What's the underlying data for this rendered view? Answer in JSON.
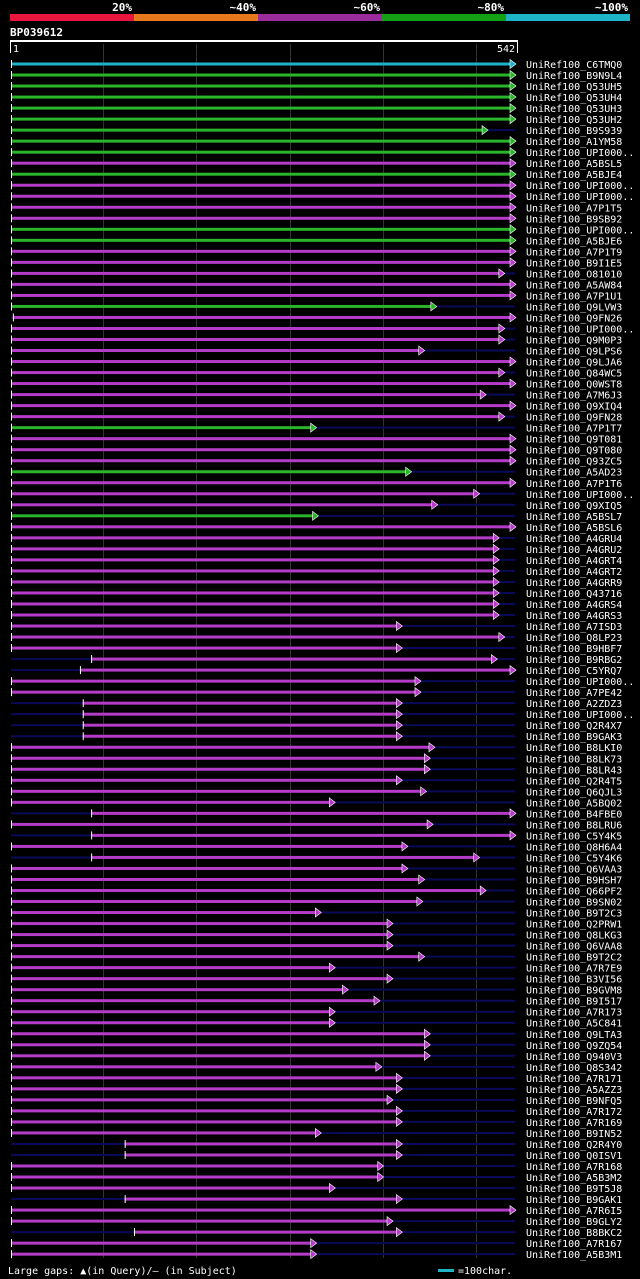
{
  "query_id": "BP039612",
  "query_length": 542,
  "query_start": 1,
  "legend": {
    "identity_bins": [
      {
        "label": "20%",
        "color": "#e8163c"
      },
      {
        "label": "~40%",
        "color": "#e87a1e"
      },
      {
        "label": "~60%",
        "color": "#9b2c9b"
      },
      {
        "label": "~80%",
        "color": "#14a014"
      },
      {
        "label": "~100%",
        "color": "#1eb4c8"
      }
    ],
    "gaps_note": "Large gaps: ▲(in Query)/– (in Subject)",
    "scale_note": "=100char."
  },
  "colors": {
    "cyan": "#1eb4c8",
    "green": "#2bb52b",
    "purple": "#b43cc8",
    "navy": "#0a0a5a",
    "grid": "#333333"
  },
  "chart_data": {
    "type": "alignment-overview",
    "x_unit": "query residue",
    "hits": [
      {
        "acc": "UniRef100_C6TMQ0",
        "start": 1,
        "end": 542,
        "color": "cyan"
      },
      {
        "acc": "UniRef100_B9N9L4",
        "start": 1,
        "end": 542,
        "color": "green"
      },
      {
        "acc": "UniRef100_Q53UH5",
        "start": 1,
        "end": 542,
        "color": "green"
      },
      {
        "acc": "UniRef100_Q53UH4",
        "start": 1,
        "end": 542,
        "color": "green"
      },
      {
        "acc": "UniRef100_Q53UH3",
        "start": 1,
        "end": 542,
        "color": "green"
      },
      {
        "acc": "UniRef100_Q53UH2",
        "start": 1,
        "end": 542,
        "color": "green"
      },
      {
        "acc": "UniRef100_B9S939",
        "start": 1,
        "end": 512,
        "color": "green"
      },
      {
        "acc": "UniRef100_A1YM58",
        "start": 1,
        "end": 542,
        "color": "green"
      },
      {
        "acc": "UniRef100_UPI000..",
        "start": 1,
        "end": 542,
        "color": "green"
      },
      {
        "acc": "UniRef100_A5BSL5",
        "start": 1,
        "end": 542,
        "color": "purple"
      },
      {
        "acc": "UniRef100_A5BJE4",
        "start": 1,
        "end": 542,
        "color": "green"
      },
      {
        "acc": "UniRef100_UPI000..",
        "start": 1,
        "end": 542,
        "color": "purple"
      },
      {
        "acc": "UniRef100_UPI000..",
        "start": 1,
        "end": 542,
        "color": "purple"
      },
      {
        "acc": "UniRef100_A7P1T5",
        "start": 1,
        "end": 542,
        "color": "purple"
      },
      {
        "acc": "UniRef100_B9SB92",
        "start": 1,
        "end": 542,
        "color": "purple"
      },
      {
        "acc": "UniRef100_UPI000..",
        "start": 1,
        "end": 542,
        "color": "green"
      },
      {
        "acc": "UniRef100_A5BJE6",
        "start": 1,
        "end": 542,
        "color": "green"
      },
      {
        "acc": "UniRef100_A7P1T9",
        "start": 1,
        "end": 542,
        "color": "purple"
      },
      {
        "acc": "UniRef100_B9I1E5",
        "start": 1,
        "end": 542,
        "color": "purple"
      },
      {
        "acc": "UniRef100_O81010",
        "start": 1,
        "end": 530,
        "color": "purple"
      },
      {
        "acc": "UniRef100_A5AW84",
        "start": 1,
        "end": 542,
        "color": "purple"
      },
      {
        "acc": "UniRef100_A7P1U1",
        "start": 1,
        "end": 542,
        "color": "purple"
      },
      {
        "acc": "UniRef100_Q9LVW3",
        "start": 1,
        "end": 457,
        "color": "green"
      },
      {
        "acc": "UniRef100_Q9FN26",
        "start": 3,
        "end": 542,
        "color": "purple"
      },
      {
        "acc": "UniRef100_UPI000..",
        "start": 1,
        "end": 530,
        "color": "purple"
      },
      {
        "acc": "UniRef100_Q9M0P3",
        "start": 1,
        "end": 530,
        "color": "purple"
      },
      {
        "acc": "UniRef100_Q9LPS6",
        "start": 1,
        "end": 444,
        "color": "purple"
      },
      {
        "acc": "UniRef100_Q9LJA6",
        "start": 1,
        "end": 542,
        "color": "purple"
      },
      {
        "acc": "UniRef100_Q84WC5",
        "start": 1,
        "end": 530,
        "color": "purple"
      },
      {
        "acc": "UniRef100_Q0WST8",
        "start": 1,
        "end": 542,
        "color": "purple"
      },
      {
        "acc": "UniRef100_A7M6J3",
        "start": 1,
        "end": 510,
        "color": "purple"
      },
      {
        "acc": "UniRef100_Q9XIQ4",
        "start": 1,
        "end": 542,
        "color": "purple"
      },
      {
        "acc": "UniRef100_Q9FN28",
        "start": 1,
        "end": 530,
        "color": "purple"
      },
      {
        "acc": "UniRef100_A7P1T7",
        "start": 1,
        "end": 328,
        "color": "green"
      },
      {
        "acc": "UniRef100_Q9T081",
        "start": 1,
        "end": 542,
        "color": "purple"
      },
      {
        "acc": "UniRef100_Q9T080",
        "start": 1,
        "end": 542,
        "color": "purple"
      },
      {
        "acc": "UniRef100_Q93ZC5",
        "start": 1,
        "end": 542,
        "color": "purple"
      },
      {
        "acc": "UniRef100_A5AD23",
        "start": 1,
        "end": 430,
        "color": "green"
      },
      {
        "acc": "UniRef100_A7P1T6",
        "start": 1,
        "end": 542,
        "color": "purple"
      },
      {
        "acc": "UniRef100_UPI000..",
        "start": 1,
        "end": 503,
        "color": "purple"
      },
      {
        "acc": "UniRef100_Q9XIQ5",
        "start": 1,
        "end": 458,
        "color": "purple"
      },
      {
        "acc": "UniRef100_A5BSL7",
        "start": 1,
        "end": 330,
        "color": "green"
      },
      {
        "acc": "UniRef100_A5BSL6",
        "start": 1,
        "end": 542,
        "color": "purple"
      },
      {
        "acc": "UniRef100_A4GRU4",
        "start": 1,
        "end": 524,
        "color": "purple"
      },
      {
        "acc": "UniRef100_A4GRU2",
        "start": 1,
        "end": 524,
        "color": "purple"
      },
      {
        "acc": "UniRef100_A4GRT4",
        "start": 1,
        "end": 524,
        "color": "purple"
      },
      {
        "acc": "UniRef100_A4GRT2",
        "start": 1,
        "end": 524,
        "color": "purple"
      },
      {
        "acc": "UniRef100_A4GRR9",
        "start": 1,
        "end": 524,
        "color": "purple"
      },
      {
        "acc": "UniRef100_Q43716",
        "start": 1,
        "end": 524,
        "color": "purple"
      },
      {
        "acc": "UniRef100_A4GRS4",
        "start": 1,
        "end": 524,
        "color": "purple"
      },
      {
        "acc": "UniRef100_A4GRS3",
        "start": 1,
        "end": 524,
        "color": "purple"
      },
      {
        "acc": "UniRef100_A7ISD3",
        "start": 1,
        "end": 420,
        "color": "purple"
      },
      {
        "acc": "UniRef100_Q8LP23",
        "start": 1,
        "end": 530,
        "color": "purple"
      },
      {
        "acc": "UniRef100_B9HBF7",
        "start": 1,
        "end": 420,
        "color": "purple"
      },
      {
        "acc": "UniRef100_B9RBG2",
        "start": 87,
        "end": 522,
        "color": "purple"
      },
      {
        "acc": "UniRef100_C5YRQ7",
        "start": 75,
        "end": 542,
        "color": "purple"
      },
      {
        "acc": "UniRef100_UPI000..",
        "start": 1,
        "end": 440,
        "color": "purple"
      },
      {
        "acc": "UniRef100_A7PE42",
        "start": 1,
        "end": 440,
        "color": "purple"
      },
      {
        "acc": "UniRef100_A2ZDZ3",
        "start": 78,
        "end": 420,
        "color": "purple"
      },
      {
        "acc": "UniRef100_UPI000..",
        "start": 78,
        "end": 420,
        "color": "purple"
      },
      {
        "acc": "UniRef100_Q2R4X7",
        "start": 78,
        "end": 420,
        "color": "purple"
      },
      {
        "acc": "UniRef100_B9GAK3",
        "start": 78,
        "end": 420,
        "color": "purple"
      },
      {
        "acc": "UniRef100_B8LKI0",
        "start": 1,
        "end": 455,
        "color": "purple"
      },
      {
        "acc": "UniRef100_B8LK73",
        "start": 1,
        "end": 450,
        "color": "purple"
      },
      {
        "acc": "UniRef100_B8LR43",
        "start": 1,
        "end": 450,
        "color": "purple"
      },
      {
        "acc": "UniRef100_Q2R4T5",
        "start": 1,
        "end": 420,
        "color": "purple"
      },
      {
        "acc": "UniRef100_Q6QJL3",
        "start": 1,
        "end": 446,
        "color": "purple"
      },
      {
        "acc": "UniRef100_A5BQ02",
        "start": 1,
        "end": 348,
        "color": "purple"
      },
      {
        "acc": "UniRef100_B4FBE0",
        "start": 87,
        "end": 542,
        "color": "purple"
      },
      {
        "acc": "UniRef100_B8LRU6",
        "start": 1,
        "end": 453,
        "color": "purple"
      },
      {
        "acc": "UniRef100_C5Y4K5",
        "start": 87,
        "end": 542,
        "color": "purple"
      },
      {
        "acc": "UniRef100_Q8H6A4",
        "start": 1,
        "end": 426,
        "color": "purple"
      },
      {
        "acc": "UniRef100_C5Y4K6",
        "start": 87,
        "end": 503,
        "color": "purple"
      },
      {
        "acc": "UniRef100_Q6VAA3",
        "start": 1,
        "end": 426,
        "color": "purple"
      },
      {
        "acc": "UniRef100_B9HSH7",
        "start": 1,
        "end": 444,
        "color": "purple"
      },
      {
        "acc": "UniRef100_Q66PF2",
        "start": 1,
        "end": 510,
        "color": "purple"
      },
      {
        "acc": "UniRef100_B9SN02",
        "start": 1,
        "end": 442,
        "color": "purple"
      },
      {
        "acc": "UniRef100_B9T2C3",
        "start": 1,
        "end": 333,
        "color": "purple"
      },
      {
        "acc": "UniRef100_Q2PRW1",
        "start": 1,
        "end": 410,
        "color": "purple"
      },
      {
        "acc": "UniRef100_Q8LKG3",
        "start": 1,
        "end": 410,
        "color": "purple"
      },
      {
        "acc": "UniRef100_Q6VAA8",
        "start": 1,
        "end": 410,
        "color": "purple"
      },
      {
        "acc": "UniRef100_B9T2C2",
        "start": 1,
        "end": 444,
        "color": "purple"
      },
      {
        "acc": "UniRef100_A7R7E9",
        "start": 1,
        "end": 348,
        "color": "purple"
      },
      {
        "acc": "UniRef100_B3VI56",
        "start": 1,
        "end": 410,
        "color": "purple"
      },
      {
        "acc": "UniRef100_B9GVM8",
        "start": 1,
        "end": 362,
        "color": "purple"
      },
      {
        "acc": "UniRef100_B9I517",
        "start": 1,
        "end": 396,
        "color": "purple"
      },
      {
        "acc": "UniRef100_A7R173",
        "start": 1,
        "end": 348,
        "color": "purple"
      },
      {
        "acc": "UniRef100_A5C841",
        "start": 1,
        "end": 348,
        "color": "purple"
      },
      {
        "acc": "UniRef100_Q9LTA3",
        "start": 1,
        "end": 450,
        "color": "purple"
      },
      {
        "acc": "UniRef100_Q9ZQ54",
        "start": 1,
        "end": 450,
        "color": "purple"
      },
      {
        "acc": "UniRef100_Q940V3",
        "start": 1,
        "end": 450,
        "color": "purple"
      },
      {
        "acc": "UniRef100_Q8S342",
        "start": 1,
        "end": 398,
        "color": "purple"
      },
      {
        "acc": "UniRef100_A7R171",
        "start": 1,
        "end": 420,
        "color": "purple"
      },
      {
        "acc": "UniRef100_A5AZZ3",
        "start": 1,
        "end": 420,
        "color": "purple"
      },
      {
        "acc": "UniRef100_B9NFQ5",
        "start": 1,
        "end": 410,
        "color": "purple"
      },
      {
        "acc": "UniRef100_A7R172",
        "start": 1,
        "end": 420,
        "color": "purple"
      },
      {
        "acc": "UniRef100_A7R169",
        "start": 1,
        "end": 420,
        "color": "purple"
      },
      {
        "acc": "UniRef100_B9IN52",
        "start": 1,
        "end": 333,
        "color": "purple"
      },
      {
        "acc": "UniRef100_Q2R4Y0",
        "start": 123,
        "end": 420,
        "color": "purple"
      },
      {
        "acc": "UniRef100_Q0ISV1",
        "start": 123,
        "end": 420,
        "color": "purple"
      },
      {
        "acc": "UniRef100_A7R168",
        "start": 1,
        "end": 400,
        "color": "purple"
      },
      {
        "acc": "UniRef100_A5B3M2",
        "start": 1,
        "end": 400,
        "color": "purple"
      },
      {
        "acc": "UniRef100_B9T5J8",
        "start": 1,
        "end": 348,
        "color": "purple"
      },
      {
        "acc": "UniRef100_B9GAK1",
        "start": 123,
        "end": 420,
        "color": "purple"
      },
      {
        "acc": "UniRef100_A7R6I5",
        "start": 1,
        "end": 542,
        "color": "purple"
      },
      {
        "acc": "UniRef100_B9GLY2",
        "start": 1,
        "end": 410,
        "color": "purple"
      },
      {
        "acc": "UniRef100_B8BKC2",
        "start": 133,
        "end": 420,
        "color": "purple"
      },
      {
        "acc": "UniRef100_A7R167",
        "start": 1,
        "end": 328,
        "color": "purple"
      },
      {
        "acc": "UniRef100_A5B3M1",
        "start": 1,
        "end": 328,
        "color": "purple"
      }
    ]
  }
}
